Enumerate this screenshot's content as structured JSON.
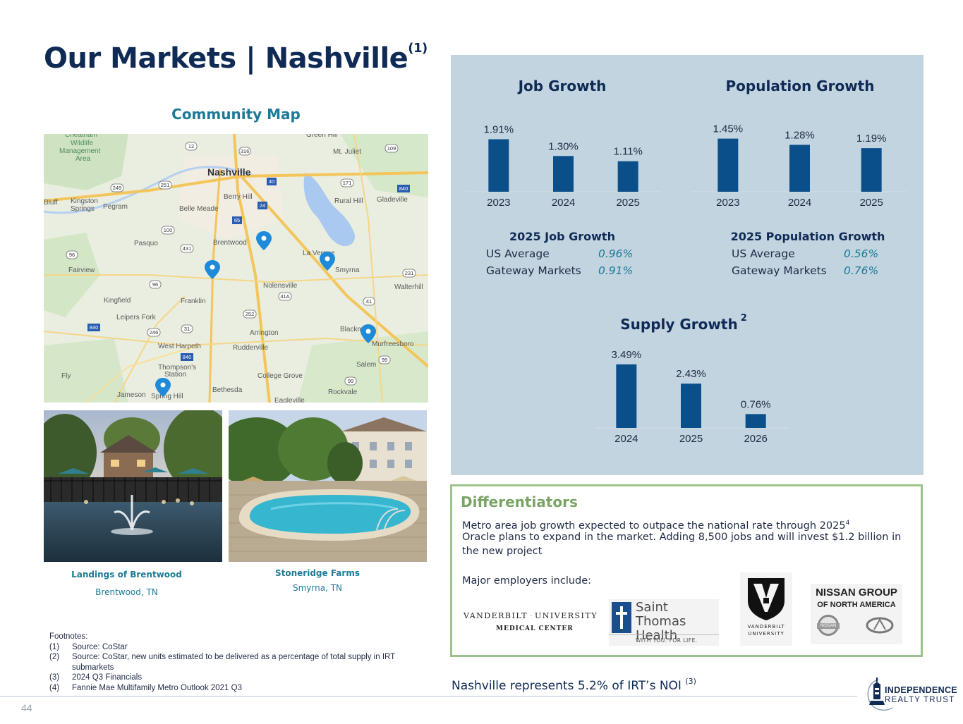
{
  "page": {
    "title": "Our Markets | Nashville",
    "title_sup": "(1)",
    "page_number": "44"
  },
  "map": {
    "title": "Community Map",
    "places": [
      "Cheatham Wildlife Management Area",
      "Green Hill",
      "Mt. Juliet",
      "Nashville",
      "Berry Hill",
      "Rural Hill",
      "Gladeville",
      "Bluff",
      "Kingston Springs",
      "Pegram",
      "Belle Meade",
      "Pasquo",
      "Brentwood",
      "La Vergne",
      "Smyrna",
      "Fairview",
      "Nolensville",
      "Walterhill",
      "Kingfield",
      "Franklin",
      "Leipers Fork",
      "Arrington",
      "Blackman",
      "Murfreesboro",
      "West Harpeth",
      "Rudderville",
      "Thompson's Station",
      "Salem",
      "Fly",
      "College Grove",
      "Jameson",
      "Spring Hill",
      "Bethesda",
      "Rockvale",
      "Eagleville"
    ],
    "highway_shields": [
      "12",
      "316",
      "109",
      "249",
      "251",
      "40",
      "171",
      "840",
      "65",
      "24",
      "100",
      "431",
      "96",
      "231",
      "41A",
      "96",
      "252",
      "41",
      "840",
      "246",
      "31",
      "840",
      "99",
      "99"
    ]
  },
  "properties": [
    {
      "name": "Landings of Brentwood",
      "location": "Brentwood, TN"
    },
    {
      "name": "Stoneridge Farms",
      "location": "Smyrna, TN"
    }
  ],
  "footnotes": {
    "heading": "Footnotes:",
    "items": [
      {
        "num": "(1)",
        "text": "Source: CoStar"
      },
      {
        "num": "(2)",
        "text": "Source: CoStar, new units estimated to be delivered as a percentage of total supply in IRT submarkets"
      },
      {
        "num": "(3)",
        "text": "2024 Q3 Financials"
      },
      {
        "num": "(4)",
        "text": "Fannie Mae Multifamily Metro Outlook 2021 Q3"
      }
    ]
  },
  "chart_data": [
    {
      "type": "bar",
      "title": "Job Growth",
      "categories": [
        "2023",
        "2024",
        "2025"
      ],
      "values": [
        1.91,
        1.3,
        1.11
      ],
      "labels": [
        "1.91%",
        "1.30%",
        "1.11%"
      ],
      "ylim": [
        0,
        2.0
      ],
      "color": "#0b4f8a"
    },
    {
      "type": "bar",
      "title": "Population Growth",
      "categories": [
        "2023",
        "2024",
        "2025"
      ],
      "values": [
        1.45,
        1.28,
        1.19
      ],
      "labels": [
        "1.45%",
        "1.28%",
        "1.19%"
      ],
      "ylim": [
        0,
        1.5
      ],
      "color": "#0b4f8a"
    },
    {
      "type": "bar",
      "title": "Supply Growth",
      "title_sup": "2",
      "categories": [
        "2024",
        "2025",
        "2026"
      ],
      "values": [
        3.49,
        2.43,
        0.76
      ],
      "labels": [
        "3.49%",
        "2.43%",
        "0.76%"
      ],
      "ylim": [
        0,
        3.6
      ],
      "color": "#0b4f8a"
    }
  ],
  "comparisons": {
    "job": {
      "title": "2025 Job Growth",
      "rows": [
        {
          "label": "US Average",
          "value": "0.96%"
        },
        {
          "label": "Gateway Markets",
          "value": "0.91%"
        }
      ]
    },
    "population": {
      "title": "2025 Population Growth",
      "rows": [
        {
          "label": "US Average",
          "value": "0.56%"
        },
        {
          "label": "Gateway Markets",
          "value": "0.76%"
        }
      ]
    }
  },
  "differentiators": {
    "title": "Differentiators",
    "line1": "Metro area job growth expected to outpace the national rate through 2025",
    "line1_sup": "4",
    "line2": "Oracle plans to expand in the market. Adding 8,500 jobs and will invest $1.2 billion in the new project",
    "employers_label": "Major employers include:",
    "employers": [
      {
        "line1": "VANDERBILT",
        "line1b": "UNIVERSITY",
        "line2": "MEDICAL CENTER"
      },
      {
        "line1": "Saint Thomas",
        "line2": "Health",
        "tagline": "WITH YOU. FOR LIFE."
      },
      {
        "line1": "VANDERBILT",
        "line2": "UNIVERSITY"
      },
      {
        "line1": "NISSAN GROUP",
        "line2": "OF NORTH AMERICA",
        "badge1": "NISSAN"
      }
    ]
  },
  "noi": {
    "text": "Nashville represents 5.2% of IRT’s NOI",
    "sup": "(3)"
  },
  "brand": {
    "line1": "INDEPENDENCE",
    "line2": "REALTY TRUST"
  }
}
